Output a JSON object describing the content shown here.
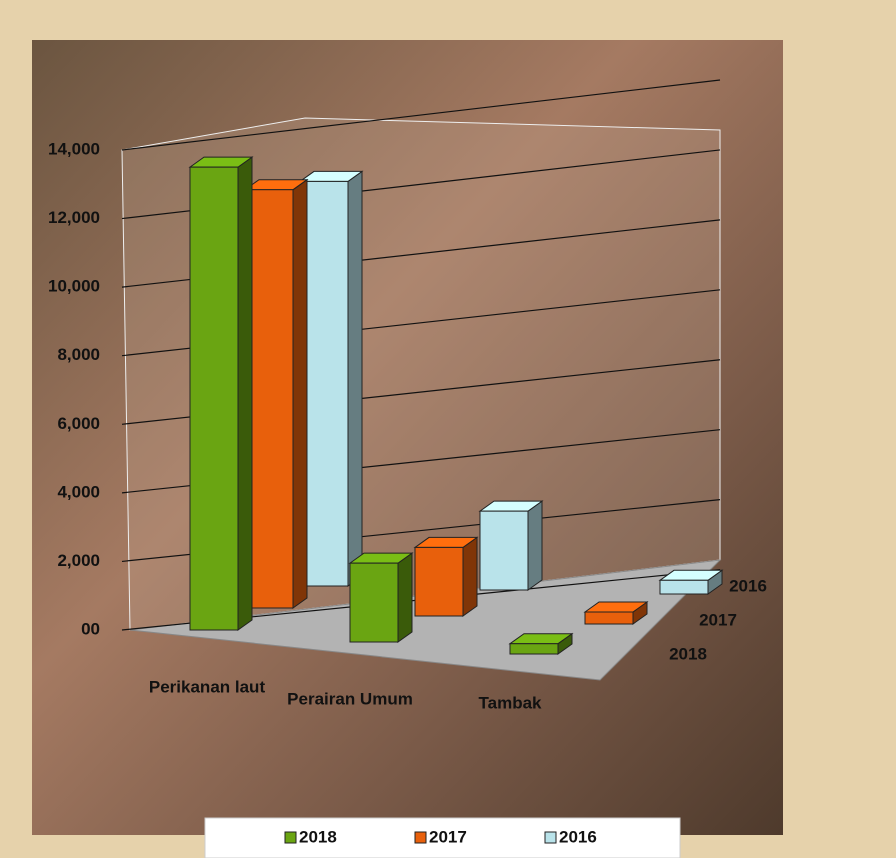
{
  "chart_data": {
    "type": "bar3d",
    "categories": [
      "Perikanan laut",
      "Perairan Umum",
      "Tambak"
    ],
    "series": [
      {
        "name": "2018",
        "color": "#6aa512",
        "values": [
          13500,
          2300,
          300
        ]
      },
      {
        "name": "2017",
        "color": "#e8600c",
        "values": [
          12200,
          2000,
          350
        ]
      },
      {
        "name": "2016",
        "color": "#b9e3ea",
        "values": [
          11800,
          2300,
          400
        ]
      }
    ],
    "ylim": [
      0,
      14000
    ],
    "yticks": [
      {
        "value": 0,
        "label": "00"
      },
      {
        "value": 2000,
        "label": "2,000"
      },
      {
        "value": 4000,
        "label": "4,000"
      },
      {
        "value": 6000,
        "label": "6,000"
      },
      {
        "value": 8000,
        "label": "8,000"
      },
      {
        "value": 10000,
        "label": "10,000"
      },
      {
        "value": 12000,
        "label": "12,000"
      },
      {
        "value": 14000,
        "label": "14,000"
      }
    ],
    "grid": true
  }
}
